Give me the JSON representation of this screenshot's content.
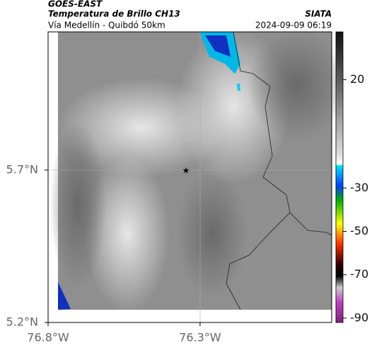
{
  "header": {
    "satellite": "GOES-EAST",
    "title": "Temperatura de Brillo CH13",
    "subtitle": "Vía Medellín - Quibdó 50km",
    "source": "SIATA",
    "datetime": "2024-09-09 06:19"
  },
  "map": {
    "xlim": [
      -76.8,
      -75.867
    ],
    "ylim": [
      5.2,
      6.153
    ],
    "xticks": [
      {
        "value": -76.8,
        "label": "76.8°W"
      },
      {
        "value": -76.3,
        "label": "76.3°W"
      }
    ],
    "yticks": [
      {
        "value": 5.2,
        "label": "5.2°N"
      },
      {
        "value": 5.7,
        "label": "5.7°N"
      }
    ]
  },
  "colorbar": {
    "lim": [
      -92,
      42
    ],
    "ticks": [
      20,
      -30,
      -50,
      -70,
      -90
    ]
  }
}
